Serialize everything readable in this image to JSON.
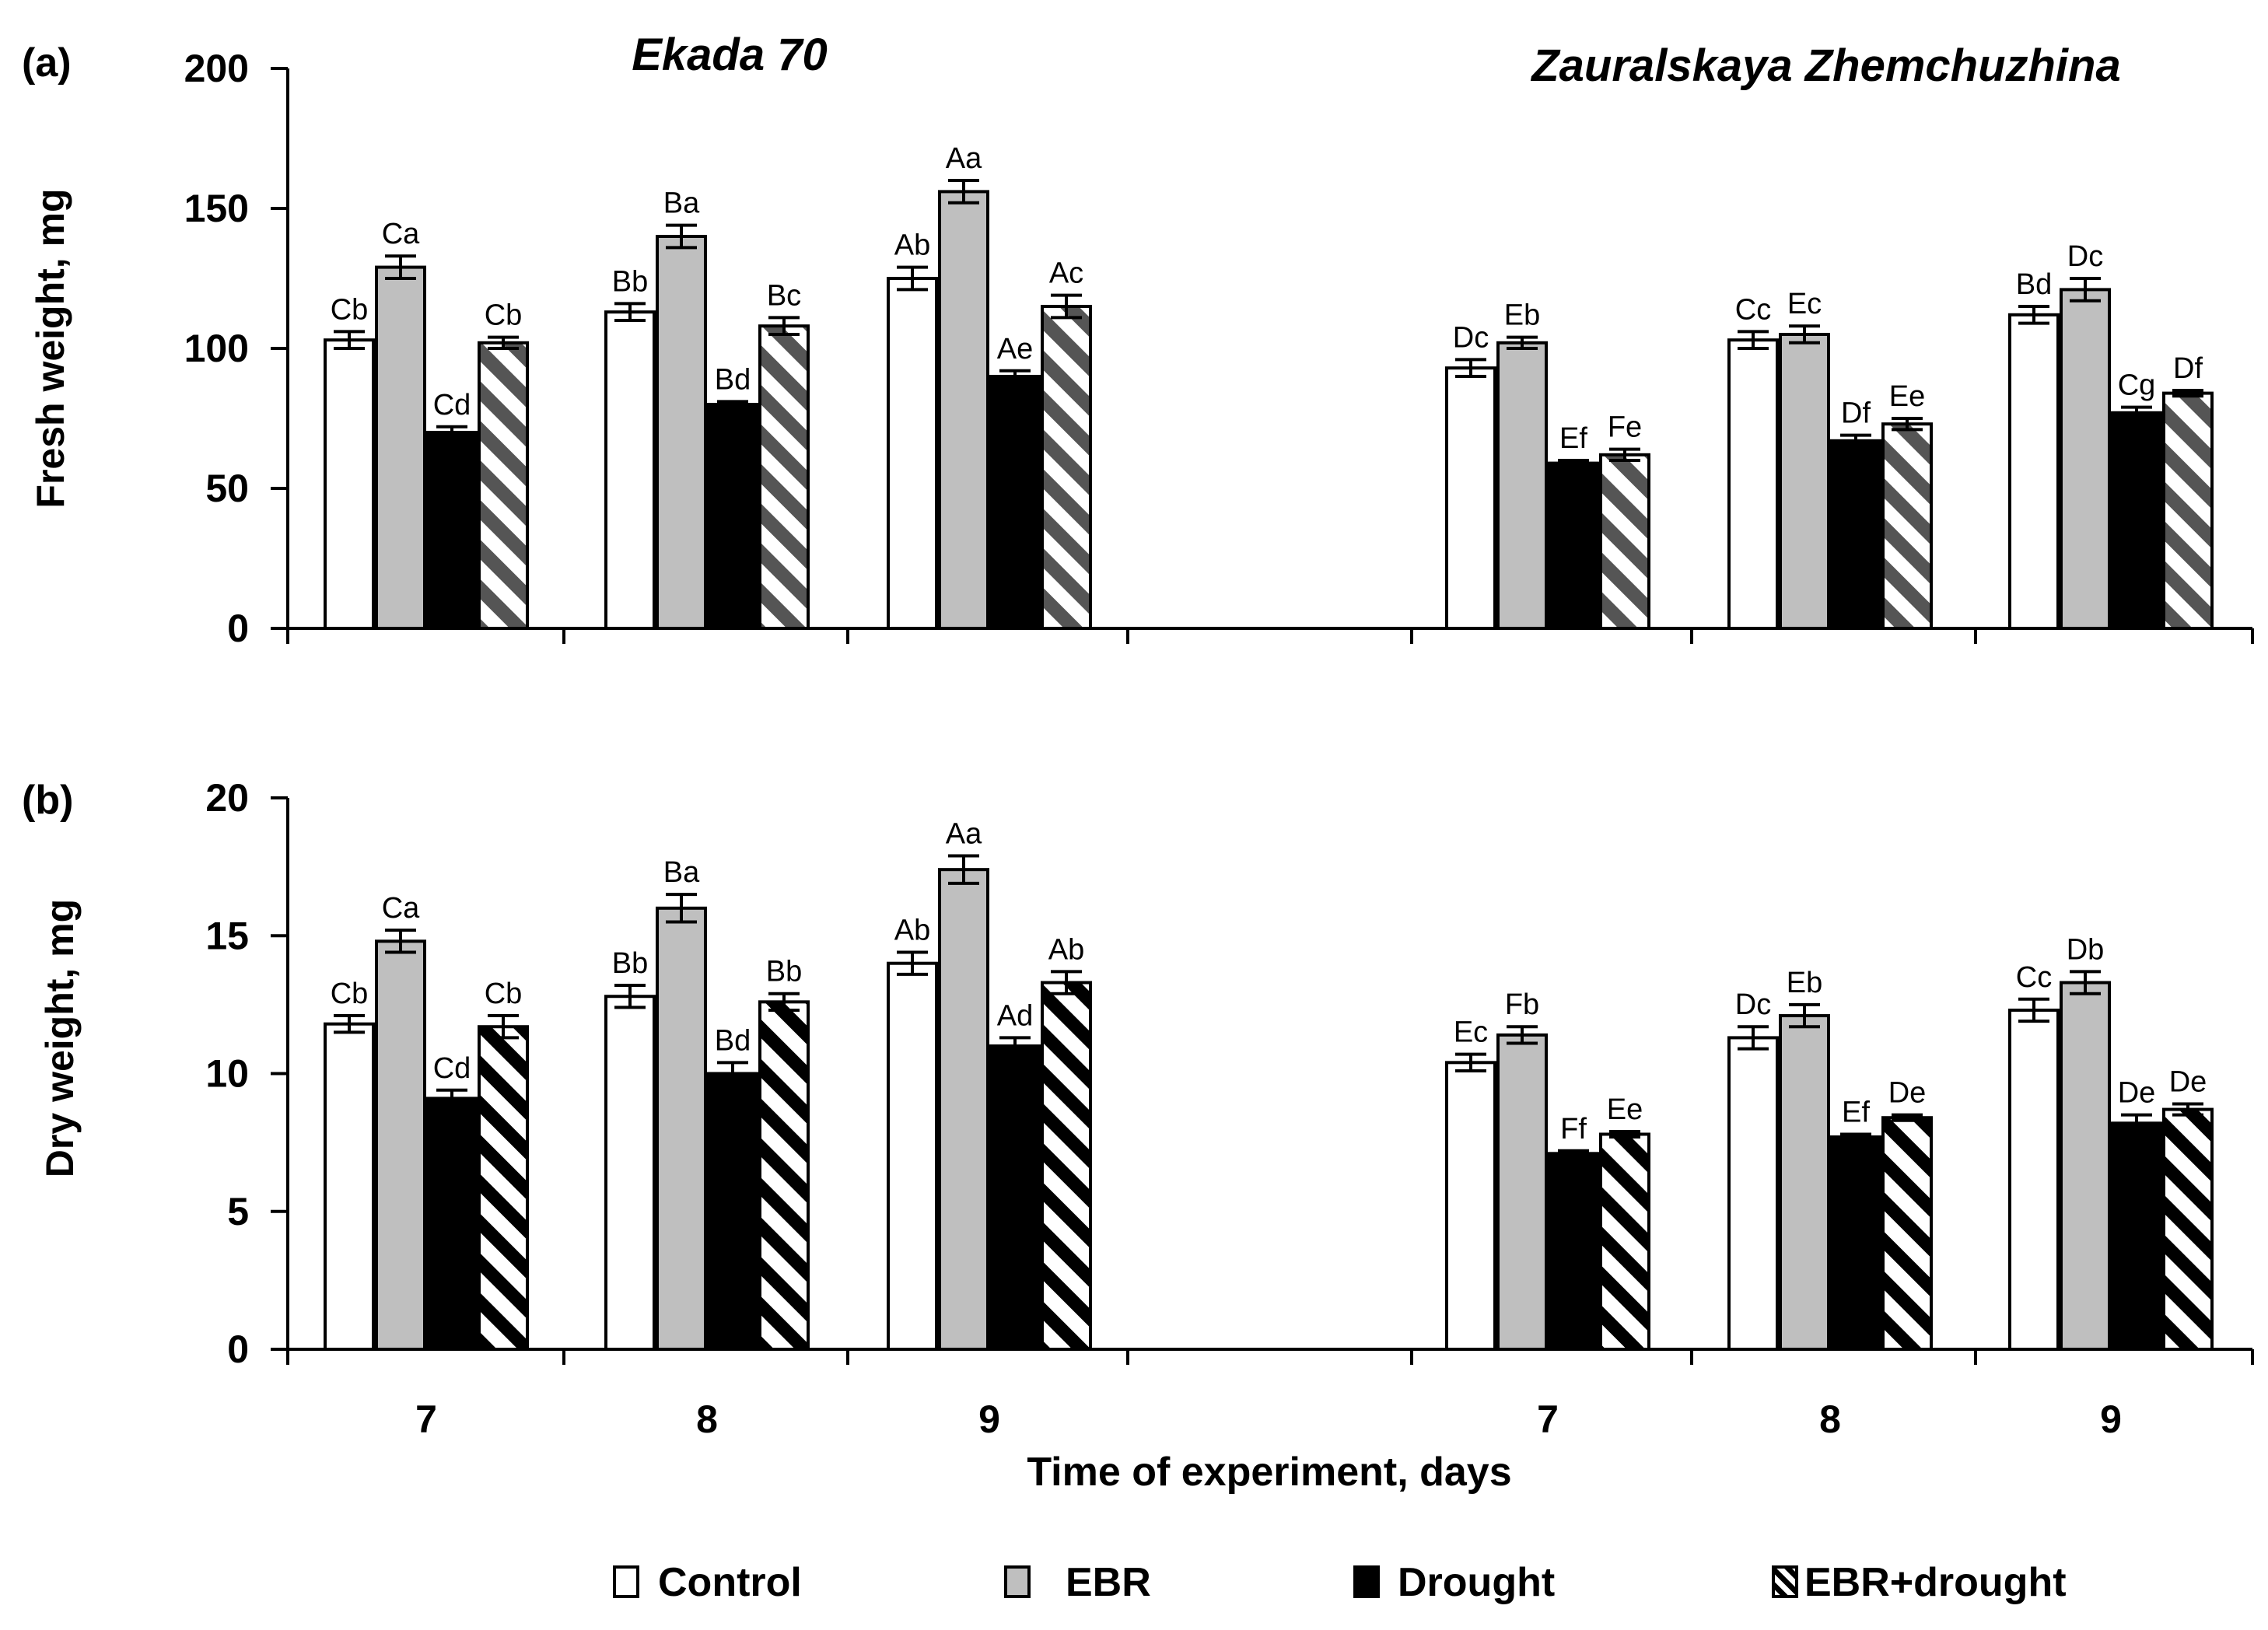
{
  "x_axis_title": "Time of experiment, days",
  "groups": [
    {
      "name": "Ekada 70",
      "days": [
        "7",
        "8",
        "9"
      ]
    },
    {
      "name": "Zauralskaya Zhemchuzhina",
      "days": [
        "7",
        "8",
        "9"
      ]
    }
  ],
  "legend": [
    {
      "key": "control",
      "label": "Control",
      "fill": "#ffffff"
    },
    {
      "key": "ebr",
      "label": "EBR",
      "fill": "#bfbfbf"
    },
    {
      "key": "drought",
      "label": "Drought",
      "fill": "#000000"
    },
    {
      "key": "ebr_drought",
      "label": "EBR+drought",
      "fill": "hatch"
    }
  ],
  "colors": {
    "control": "#ffffff",
    "ebr": "#bfbfbf",
    "drought": "#000000",
    "hatch_a": "#555555",
    "hatch_b": "#000000",
    "ink": "#000000"
  },
  "chart_data": [
    {
      "type": "bar",
      "panel_label": "(a)",
      "ylabel": "Fresh weight, mg",
      "ylim": [
        0,
        200
      ],
      "yticks": [
        0,
        50,
        100,
        150,
        200
      ],
      "hatch_color": "#555555",
      "categories": [
        "Ekada 70 / 7",
        "Ekada 70 / 8",
        "Ekada 70 / 9",
        "Zauralskaya Zhemchuzhina / 7",
        "Zauralskaya Zhemchuzhina / 8",
        "Zauralskaya Zhemchuzhina / 9"
      ],
      "series": [
        {
          "name": "Control",
          "values": [
            103,
            113,
            125,
            93,
            103,
            112
          ],
          "errors": [
            3,
            3,
            4,
            3,
            3,
            3
          ],
          "labels": [
            "Cb",
            "Bb",
            "Ab",
            "Dc",
            "Cc",
            "Bd"
          ]
        },
        {
          "name": "EBR",
          "values": [
            129,
            140,
            156,
            102,
            105,
            121
          ],
          "errors": [
            4,
            4,
            4,
            2,
            3,
            4
          ],
          "labels": [
            "Ca",
            "Ba",
            "Aa",
            "Eb",
            "Ec",
            "Dc"
          ]
        },
        {
          "name": "Drought",
          "values": [
            70,
            80,
            90,
            59,
            67,
            77
          ],
          "errors": [
            2,
            1,
            2,
            1,
            2,
            2
          ],
          "labels": [
            "Cd",
            "Bd",
            "Ae",
            "Ef",
            "Df",
            "Cg"
          ]
        },
        {
          "name": "EBR+drought",
          "values": [
            102,
            108,
            115,
            62,
            73,
            84
          ],
          "errors": [
            2,
            3,
            4,
            2,
            2,
            1
          ],
          "labels": [
            "Cb",
            "Bc",
            "Ac",
            "Fe",
            "Ee",
            "Df"
          ]
        }
      ]
    },
    {
      "type": "bar",
      "panel_label": "(b)",
      "ylabel": "Dry weight, mg",
      "ylim": [
        0,
        20
      ],
      "yticks": [
        0,
        5,
        10,
        15,
        20
      ],
      "hatch_color": "#000000",
      "categories": [
        "Ekada 70 / 7",
        "Ekada 70 / 8",
        "Ekada 70 / 9",
        "Zauralskaya Zhemchuzhina / 7",
        "Zauralskaya Zhemchuzhina / 8",
        "Zauralskaya Zhemchuzhina / 9"
      ],
      "series": [
        {
          "name": "Control",
          "values": [
            11.8,
            12.8,
            14.0,
            10.4,
            11.3,
            12.3
          ],
          "errors": [
            0.3,
            0.4,
            0.4,
            0.3,
            0.4,
            0.4
          ],
          "labels": [
            "Cb",
            "Bb",
            "Ab",
            "Ec",
            "Dc",
            "Cc"
          ]
        },
        {
          "name": "EBR",
          "values": [
            14.8,
            16.0,
            17.4,
            11.4,
            12.1,
            13.3
          ],
          "errors": [
            0.4,
            0.5,
            0.5,
            0.3,
            0.4,
            0.4
          ],
          "labels": [
            "Ca",
            "Ba",
            "Aa",
            "Fb",
            "Eb",
            "Db"
          ]
        },
        {
          "name": "Drought",
          "values": [
            9.1,
            10.0,
            11.0,
            7.1,
            7.7,
            8.2
          ],
          "errors": [
            0.3,
            0.4,
            0.3,
            0.1,
            0.1,
            0.3
          ],
          "labels": [
            "Cd",
            "Bd",
            "Ad",
            "Ff",
            "Ef",
            "De"
          ]
        },
        {
          "name": "EBR+drought",
          "values": [
            11.7,
            12.6,
            13.3,
            7.8,
            8.4,
            8.7
          ],
          "errors": [
            0.4,
            0.3,
            0.4,
            0.1,
            0.1,
            0.2
          ],
          "labels": [
            "Cb",
            "Bb",
            "Ab",
            "Ee",
            "De",
            "De"
          ]
        }
      ]
    }
  ]
}
